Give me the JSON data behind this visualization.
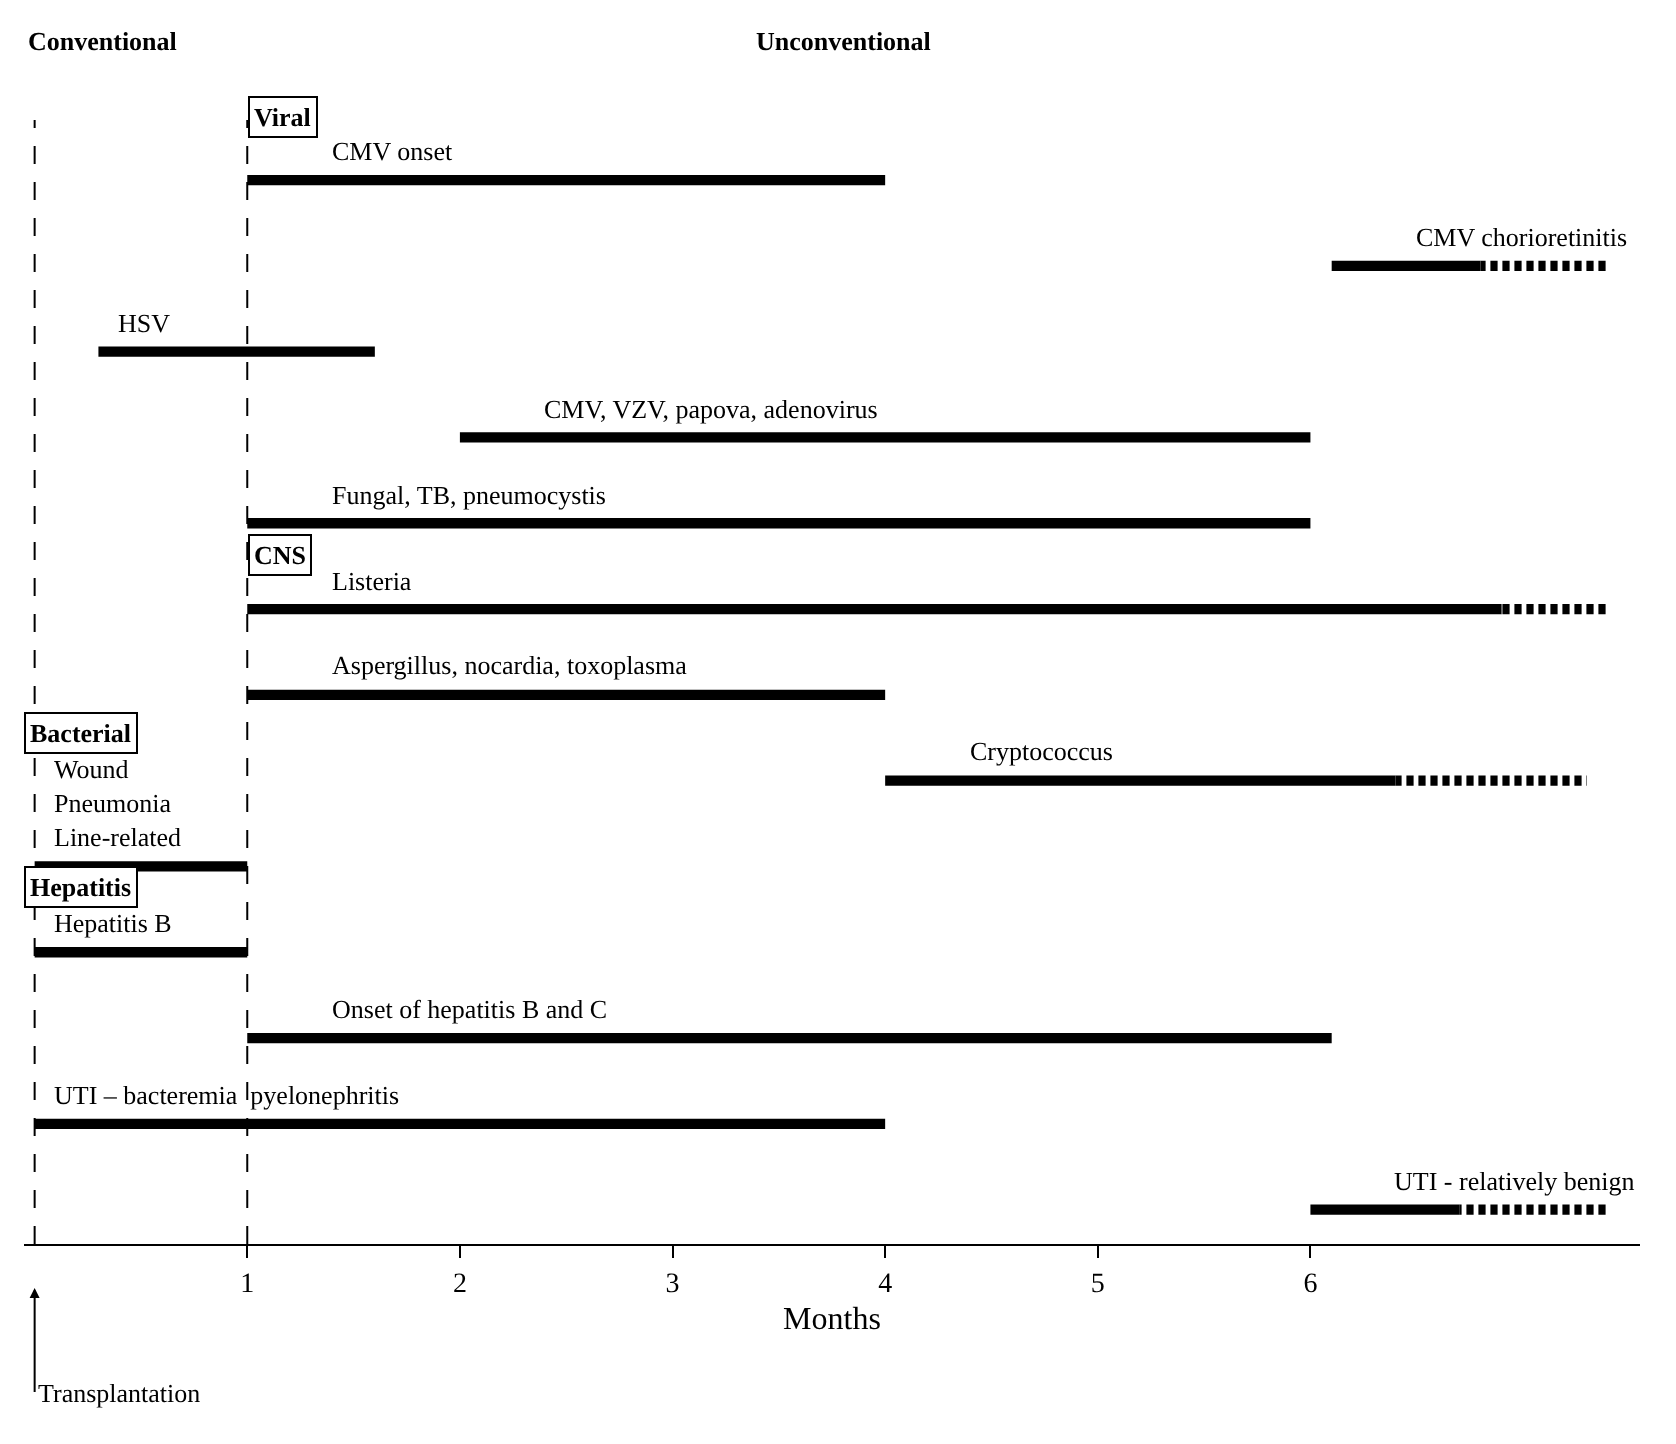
{
  "chart_data": {
    "type": "bar",
    "orientation": "horizontal",
    "xlabel": "Months",
    "categories": [
      "CMV onset",
      "CMV chorioretinitis",
      "HSV",
      "CMV, VZV, papova, adenovirus",
      "Fungal, TB, pneumocystis",
      "Listeria",
      "Aspergillus, nocardia, toxoplasma",
      "Cryptococcus",
      "Wound\nPneumonia\nLine-related",
      "Hepatitis B",
      "Onset of hepatitis B and C",
      "UTI – bacteremia  pyelonephritis",
      "UTI - relatively benign"
    ],
    "series": [
      {
        "color": "#000000",
        "base": [
          1,
          6.1,
          0.3,
          2,
          1,
          1,
          1,
          4,
          0,
          0,
          1,
          0,
          6
        ],
        "values": [
          3,
          0.7,
          1.3,
          4,
          5,
          5.9,
          3,
          2.4,
          1,
          1,
          5.1,
          4,
          0.7
        ]
      },
      {
        "color": "#000000",
        "line_style": "dotted",
        "base": [
          null,
          6.8,
          null,
          null,
          null,
          6.9,
          null,
          6.4,
          null,
          null,
          null,
          null,
          6.7
        ],
        "values": [
          null,
          0.6,
          null,
          null,
          null,
          0.5,
          null,
          0.9,
          null,
          null,
          null,
          null,
          0.7
        ]
      }
    ],
    "xlim": [
      -0.05,
      7.55
    ],
    "xticks": [
      1,
      2,
      3,
      4,
      5,
      6
    ],
    "tick_labels": "x",
    "grid": false,
    "ref_lines": [
      {
        "axis": "x",
        "value": 0,
        "line_style": "dashed",
        "color": "#000000"
      },
      {
        "axis": "x",
        "value": 1,
        "line_style": "dashed",
        "color": "#000000"
      }
    ],
    "annotations": [
      "Conventional",
      "Unconventional",
      "Viral",
      "CNS",
      "Bacterial",
      "Hepatitis",
      "Transplantation"
    ]
  }
}
